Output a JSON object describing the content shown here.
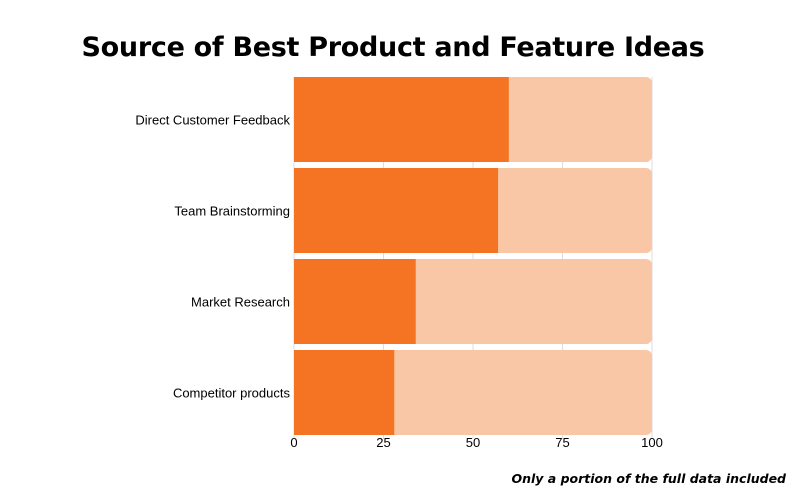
{
  "title": "Source of Best Product and Feature Ideas",
  "footnote": "Only a portion of the full data included",
  "chart_data": {
    "type": "bar",
    "orientation": "horizontal",
    "stacked_to": 100,
    "categories": [
      "Direct Customer Feedback",
      "Team Brainstorming",
      "Market Research",
      "Competitor products"
    ],
    "values": [
      60,
      57,
      34,
      28
    ],
    "xlim": [
      0,
      100
    ],
    "xticks": [
      0,
      25,
      50,
      75,
      100
    ],
    "grid": true,
    "legend": "none",
    "colors": {
      "value": "#f47424",
      "remainder": "#f9c6a6",
      "grid": "#dddddd",
      "text": "#000000"
    }
  }
}
